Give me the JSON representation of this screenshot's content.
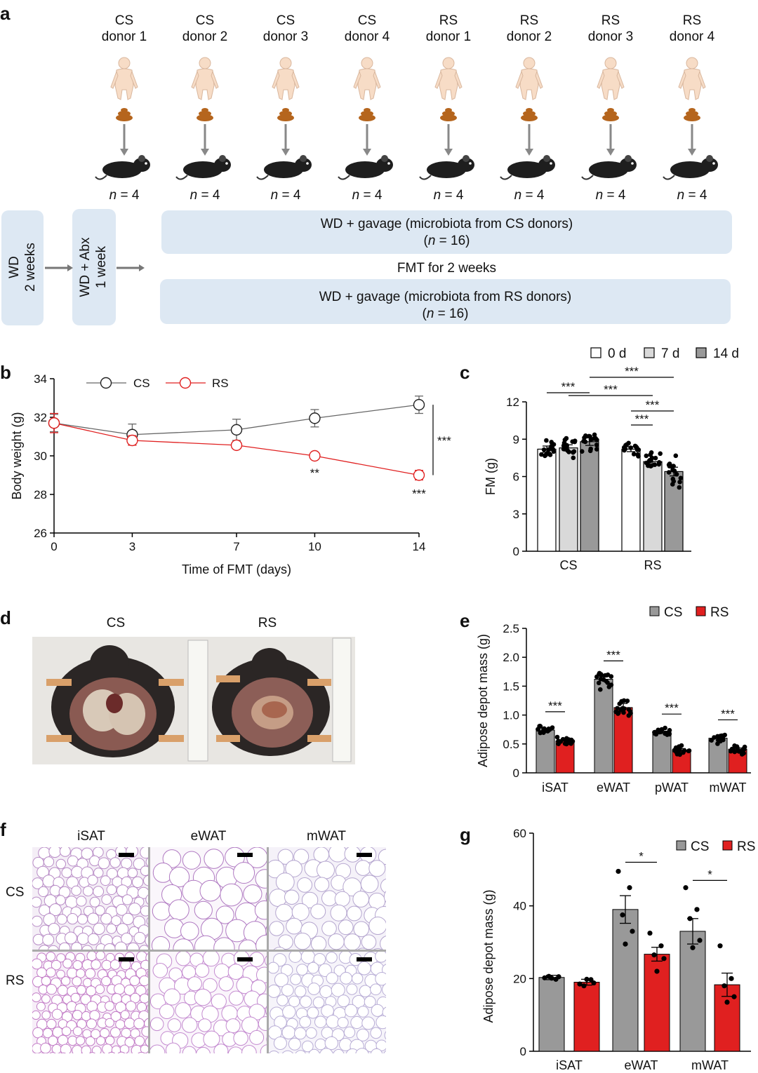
{
  "panels": {
    "a": "a",
    "b": "b",
    "c": "c",
    "d": "d",
    "e": "e",
    "f": "f",
    "g": "g"
  },
  "panel_a": {
    "donors": [
      {
        "group": "CS",
        "label": "donor 1",
        "n": "= 4"
      },
      {
        "group": "CS",
        "label": "donor 2",
        "n": "= 4"
      },
      {
        "group": "CS",
        "label": "donor 3",
        "n": "= 4"
      },
      {
        "group": "CS",
        "label": "donor 4",
        "n": "= 4"
      },
      {
        "group": "RS",
        "label": "donor 1",
        "n": "= 4"
      },
      {
        "group": "RS",
        "label": "donor 2",
        "n": "= 4"
      },
      {
        "group": "RS",
        "label": "donor 3",
        "n": "= 4"
      },
      {
        "group": "RS",
        "label": "donor 4",
        "n": "= 4"
      }
    ],
    "n_italic": "n",
    "step1_line1": "WD",
    "step1_line2": "2 weeks",
    "step2_line1": "WD + Abx",
    "step2_line2": "1 week",
    "cs_box_line1": "WD + gavage (microbiota from CS donors)",
    "cs_box_n": "= 16)",
    "fmt_text": "FMT for 2 weeks",
    "rs_box_line1": "WD + gavage (microbiota from RS donors)",
    "rs_box_n": "= 16)",
    "open_paren": "("
  },
  "colors": {
    "cs_gray": "#999999",
    "rs_red": "#e02020",
    "box_blue": "#dde8f3",
    "day0": "#ffffff",
    "day7": "#d9d9d9",
    "day14": "#999999"
  },
  "panel_d": {
    "cs_label": "CS",
    "rs_label": "RS"
  },
  "panel_f": {
    "cols": [
      "iSAT",
      "eWAT",
      "mWAT"
    ],
    "rows": [
      "CS",
      "RS"
    ]
  },
  "chart_data": [
    {
      "id": "b",
      "type": "line",
      "xlabel": "Time of FMT (days)",
      "ylabel": "Body weight (g)",
      "x": [
        0,
        3,
        7,
        10,
        14
      ],
      "xlim": [
        0,
        14
      ],
      "ylim": [
        26,
        34
      ],
      "xticks": [
        "0",
        "3",
        "7",
        "10",
        "14"
      ],
      "yticks": [
        "26",
        "28",
        "30",
        "32",
        "34"
      ],
      "series": [
        {
          "name": "CS",
          "values": [
            31.7,
            31.1,
            31.35,
            31.95,
            32.65
          ],
          "err": [
            0.45,
            0.55,
            0.55,
            0.45,
            0.45
          ]
        },
        {
          "name": "RS",
          "values": [
            31.7,
            30.8,
            30.55,
            30.0,
            29.0
          ],
          "err": [
            0.5,
            0.25,
            0.1,
            0.15,
            0.25
          ]
        }
      ],
      "annotations": [
        {
          "at": "RS day 10",
          "text": "**"
        },
        {
          "at": "RS day 14",
          "text": "***"
        },
        {
          "at": "bracket",
          "text": "***"
        }
      ],
      "legend": "top-left"
    },
    {
      "id": "c",
      "type": "bar",
      "ylabel": "FM (g)",
      "categories": [
        "CS",
        "RS"
      ],
      "ylim": [
        0,
        12
      ],
      "yticks": [
        "0",
        "3",
        "6",
        "9",
        "12"
      ],
      "series": [
        {
          "name": "0 d",
          "values": [
            8.2,
            8.2
          ],
          "err": [
            0.25,
            0.2
          ]
        },
        {
          "name": "7 d",
          "values": [
            8.3,
            7.2
          ],
          "err": [
            0.25,
            0.25
          ]
        },
        {
          "name": "14 d",
          "values": [
            8.8,
            6.4
          ],
          "err": [
            0.3,
            0.35
          ]
        }
      ],
      "significance": [
        "***",
        "***",
        "***",
        "***",
        "***"
      ],
      "legend": "top"
    },
    {
      "id": "e",
      "type": "bar",
      "ylabel": "Adipose depot mass (g)",
      "categories": [
        "iSAT",
        "eWAT",
        "pWAT",
        "mWAT"
      ],
      "ylim": [
        0,
        2.5
      ],
      "yticks": [
        "0",
        "0.5",
        "1.0",
        "1.5",
        "2.0",
        "2.5"
      ],
      "series": [
        {
          "name": "CS",
          "values": [
            0.74,
            1.62,
            0.7,
            0.6
          ],
          "err": [
            0.03,
            0.04,
            0.02,
            0.02
          ]
        },
        {
          "name": "RS",
          "values": [
            0.55,
            1.13,
            0.39,
            0.41
          ],
          "err": [
            0.04,
            0.07,
            0.03,
            0.02
          ]
        }
      ],
      "significance": [
        "***",
        "***",
        "***",
        "***"
      ],
      "legend": "top-right"
    },
    {
      "id": "g",
      "type": "bar",
      "ylabel": "Adipose depot mass (g)",
      "categories": [
        "iSAT",
        "eWAT",
        "mWAT"
      ],
      "ylim": [
        0,
        60
      ],
      "yticks": [
        "0",
        "20",
        "40",
        "60"
      ],
      "series": [
        {
          "name": "CS",
          "values": [
            20.3,
            39.0,
            33.0
          ],
          "err": [
            0.6,
            3.8,
            3.5
          ]
        },
        {
          "name": "RS",
          "values": [
            19.0,
            26.7,
            18.3
          ],
          "err": [
            0.8,
            1.9,
            3.2
          ]
        }
      ],
      "significance": [
        "*",
        "*"
      ],
      "legend": "top-right"
    }
  ]
}
